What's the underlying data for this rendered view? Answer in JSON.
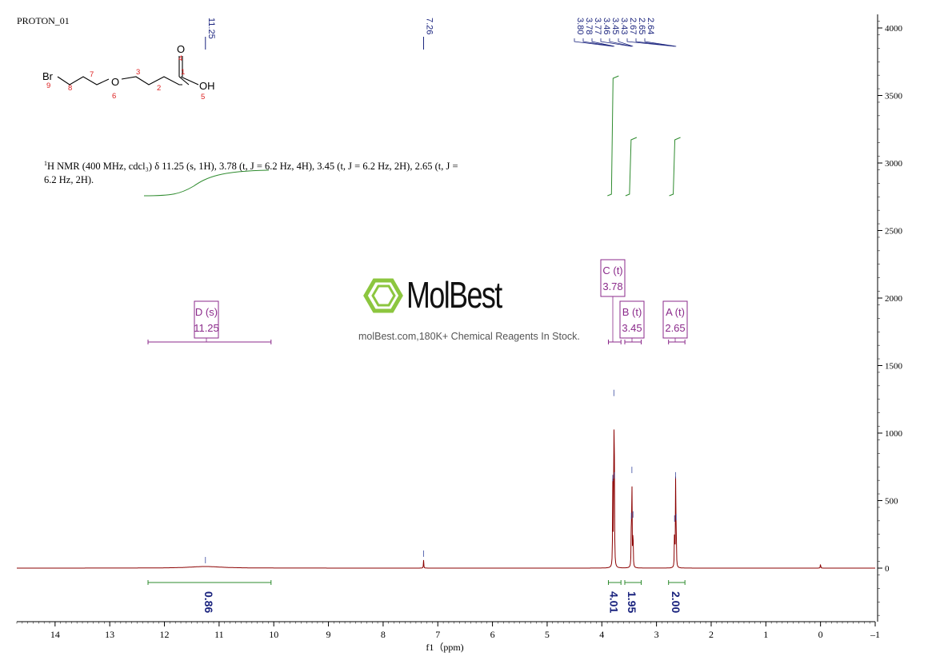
{
  "spectrum": {
    "title": "PROTON_01",
    "description_prefix": "1",
    "description_l1": "H NMR (400 MHz, cdcl₃) δ 11.25 (s, 1H), 3.78 (t, J = 6.2 Hz, 4H), 3.45 (t, J = 6.2 Hz, 2H), 2.65 (t, J =",
    "description_l2": "6.2 Hz, 2H)."
  },
  "structure": {
    "atoms": [
      "Br",
      "O",
      "O",
      "OH"
    ],
    "locants": [
      "1",
      "2",
      "3",
      "4",
      "5",
      "6",
      "7",
      "8",
      "9"
    ]
  },
  "watermark": {
    "name": "MolBest",
    "tagline": "molBest.com,180K+ Chemical Reagents In Stock."
  },
  "chart_data": {
    "type": "line",
    "xlabel": "f1（ppm)",
    "xlim": [
      14.7,
      -1
    ],
    "ylim": [
      -400,
      4100
    ],
    "x_ticks": [
      14,
      13,
      12,
      11,
      10,
      9,
      8,
      7,
      6,
      5,
      4,
      3,
      2,
      1,
      0,
      -1
    ],
    "x_tick_labels": [
      "14",
      "13",
      "12",
      "11",
      "10",
      "9",
      "8",
      "7",
      "6",
      "5",
      "4",
      "3",
      "2",
      "1",
      "0",
      "–1"
    ],
    "y_ticks": [
      0,
      500,
      1000,
      1500,
      2000,
      2500,
      3000,
      3500,
      4000
    ],
    "y_tick_labels": [
      "0",
      "500",
      "1000",
      "1500",
      "2000",
      "2500",
      "3000",
      "3500",
      "4000"
    ],
    "peaks": [
      {
        "ppm": 11.25,
        "height": 12,
        "width": 0.35
      },
      {
        "ppm": 7.26,
        "height": 60,
        "width": 0.004
      },
      {
        "ppm": 3.8,
        "height": 620,
        "width": 0.004
      },
      {
        "ppm": 3.78,
        "height": 1250,
        "width": 0.004
      },
      {
        "ppm": 3.77,
        "height": 640,
        "width": 0.004
      },
      {
        "ppm": 3.46,
        "height": 340,
        "width": 0.004
      },
      {
        "ppm": 3.45,
        "height": 680,
        "width": 0.004
      },
      {
        "ppm": 3.43,
        "height": 350,
        "width": 0.004
      },
      {
        "ppm": 2.67,
        "height": 320,
        "width": 0.004
      },
      {
        "ppm": 2.65,
        "height": 640,
        "width": 0.004
      },
      {
        "ppm": 2.64,
        "height": 330,
        "width": 0.004
      },
      {
        "ppm": 0.0,
        "height": 35,
        "width": 0.004
      }
    ],
    "peak_labels": [
      {
        "ppm": 11.25,
        "label": "11.25"
      },
      {
        "ppm": 7.26,
        "label": "7.26"
      },
      {
        "ppm": 3.8,
        "label": "3.80"
      },
      {
        "ppm": 3.78,
        "label": "3.78"
      },
      {
        "ppm": 3.77,
        "label": "3.77"
      },
      {
        "ppm": 3.46,
        "label": "3.46"
      },
      {
        "ppm": 3.45,
        "label": "3.45"
      },
      {
        "ppm": 3.43,
        "label": "3.43"
      },
      {
        "ppm": 2.67,
        "label": "2.67"
      },
      {
        "ppm": 2.65,
        "label": "2.65"
      },
      {
        "ppm": 2.64,
        "label": "2.64"
      }
    ],
    "multiplets": [
      {
        "letter": "D",
        "type": "(s)",
        "shift": "11.25",
        "from": 12.3,
        "to": 10.05
      },
      {
        "letter": "C",
        "type": "(t)",
        "shift": "3.78",
        "from": 3.88,
        "to": 3.65
      },
      {
        "letter": "B",
        "type": "(t)",
        "shift": "3.45",
        "from": 3.58,
        "to": 3.28
      },
      {
        "letter": "A",
        "type": "(t)",
        "shift": "2.65",
        "from": 2.78,
        "to": 2.48
      }
    ],
    "integrals": [
      {
        "from": 12.3,
        "to": 10.05,
        "value": "0.86"
      },
      {
        "from": 3.88,
        "to": 3.65,
        "value": "4.01"
      },
      {
        "from": 3.58,
        "to": 3.28,
        "value": "1.95"
      },
      {
        "from": 2.78,
        "to": 2.48,
        "value": "2.00"
      }
    ],
    "colors": {
      "spectrum": "#8b0000",
      "peak_labels": "#1a237e",
      "integral": "#2e8b2e",
      "multiplet": "#8b2a8b",
      "logo": "#8cc63f"
    }
  }
}
